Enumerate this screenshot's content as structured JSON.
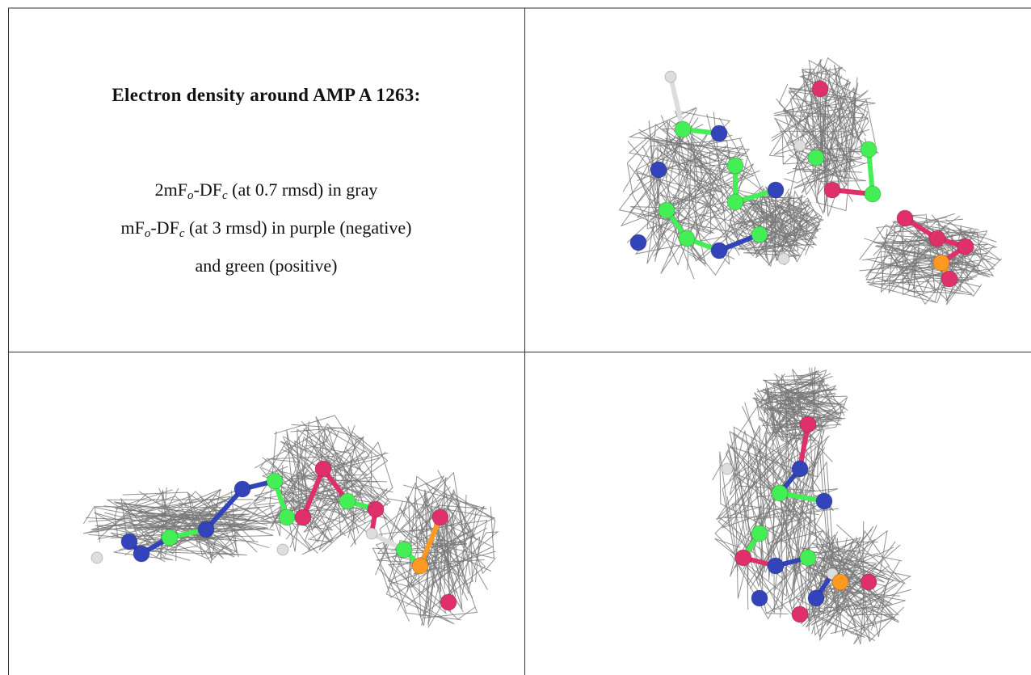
{
  "caption": {
    "title": "Electron density around AMP A 1263:",
    "lines": [
      [
        "2mF",
        "o",
        "-DF",
        "c",
        " (at 0.7 rmsd) in gray"
      ],
      [
        "mF",
        "o",
        "-DF",
        "c",
        " (at 3 rmsd) in purple (negative)"
      ],
      [
        "and green (positive)"
      ]
    ]
  }
}
